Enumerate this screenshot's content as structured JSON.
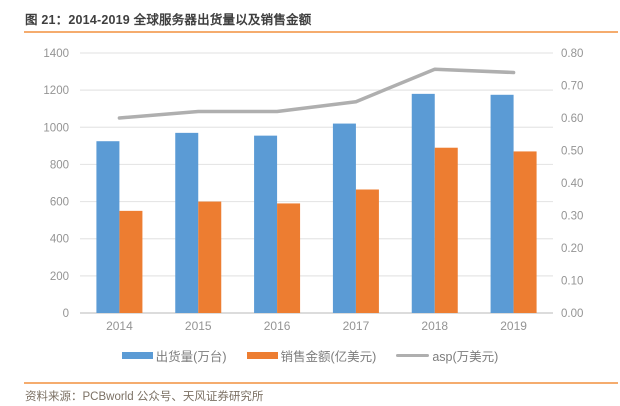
{
  "header": {
    "title": "图 21：2014-2019 全球服务器出货量以及销售金额"
  },
  "footer": {
    "source": "资料来源：PCBworld 公众号、天风证券研究所"
  },
  "colors": {
    "accent_rule": "#F5AC6E",
    "bar_blue": "#5B9BD5",
    "bar_orange": "#ED7D31",
    "line_gray": "#AFAFAF",
    "grid": "#E6E6E6",
    "axis_line": "#C6C6C6",
    "axis_text": "#949494",
    "title_text": "#3F3F3F",
    "legend_text": "#7D7D7D",
    "source_text": "#7B7063"
  },
  "chart_data": {
    "type": "bar",
    "subtype": "bar+line combo, dual axis",
    "categories": [
      "2014",
      "2015",
      "2016",
      "2017",
      "2018",
      "2019"
    ],
    "series": [
      {
        "key": "shipments",
        "name": "出货量(万台)",
        "type": "bar",
        "axis": "left",
        "color": "#5B9BD5",
        "values": [
          925,
          970,
          955,
          1020,
          1180,
          1175
        ]
      },
      {
        "key": "sales",
        "name": "销售金额(亿美元)",
        "type": "bar",
        "axis": "left",
        "color": "#ED7D31",
        "values": [
          550,
          600,
          590,
          665,
          890,
          870
        ]
      },
      {
        "key": "asp",
        "name": "asp(万美元)",
        "type": "line",
        "axis": "right",
        "color": "#AFAFAF",
        "values": [
          0.6,
          0.62,
          0.62,
          0.65,
          0.75,
          0.74
        ]
      }
    ],
    "left_axis": {
      "min": 0,
      "max": 1400,
      "step": 200,
      "ticks": [
        "0",
        "200",
        "400",
        "600",
        "800",
        "1000",
        "1200",
        "1400"
      ]
    },
    "right_axis": {
      "min": 0,
      "max": 0.8,
      "step": 0.1,
      "ticks": [
        "0.00",
        "0.10",
        "0.20",
        "0.30",
        "0.40",
        "0.50",
        "0.60",
        "0.70",
        "0.80"
      ]
    },
    "grid": true,
    "legend_position": "bottom"
  }
}
